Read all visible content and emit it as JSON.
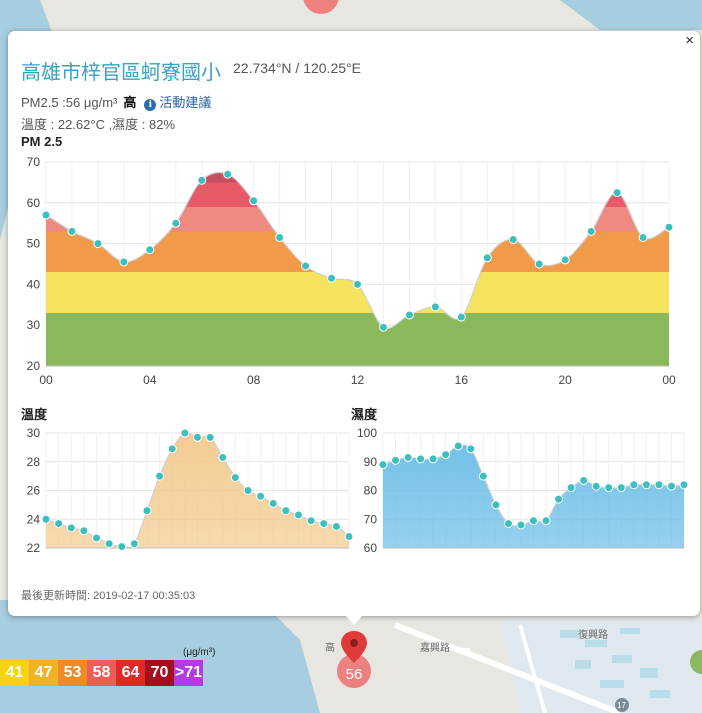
{
  "header": {
    "title": "高雄市梓官區蚵寮國小",
    "coords": "22.734°N / 120.25°E",
    "close": "×"
  },
  "pm_line": {
    "text": "PM2.5 :56 μg/m³",
    "level": "高",
    "info_icon": "i",
    "advice": "活動建議"
  },
  "env_line": "溫度 : 22.62°C ,濕度 : 82%",
  "pm_chart_label": "PM 2.5",
  "temp_chart_label": "溫度",
  "hum_chart_label": "濕度",
  "updated": "最後更新時間: 2019-02-17 00:35:03",
  "legend": {
    "unit": "(μg/m³)",
    "items": [
      {
        "label": "41",
        "color": "#f5d312"
      },
      {
        "label": "47",
        "color": "#f2b228"
      },
      {
        "label": "53",
        "color": "#ef8a24"
      },
      {
        "label": "58",
        "color": "#ee5c5c"
      },
      {
        "label": "64",
        "color": "#e02a2a"
      },
      {
        "label": "70",
        "color": "#a60e1e"
      },
      {
        "label": ">71",
        "color": "#b23ce0"
      }
    ]
  },
  "marker": {
    "value": "56"
  },
  "map_labels": {
    "street": "嘉興路",
    "poi": "高",
    "road2": "復興路",
    "route": "17"
  },
  "chart_data": [
    {
      "type": "area",
      "title": "PM 2.5",
      "x": [
        "00",
        "01",
        "02",
        "03",
        "04",
        "05",
        "06",
        "07",
        "08",
        "09",
        "10",
        "11",
        "12",
        "13",
        "14",
        "15",
        "16",
        "17",
        "18",
        "19",
        "20",
        "21",
        "22",
        "23",
        "00"
      ],
      "xticks": [
        "00",
        "04",
        "08",
        "12",
        "16",
        "20",
        "00"
      ],
      "values": [
        57,
        53,
        50,
        45.5,
        48.5,
        55,
        65.5,
        67,
        60.5,
        51.5,
        44.5,
        41.5,
        40,
        29.5,
        32.5,
        34.5,
        32,
        46.5,
        51,
        45,
        46,
        53,
        62.5,
        51.5,
        54
      ],
      "ylim": [
        20,
        70
      ],
      "yticks": [
        20,
        30,
        40,
        50,
        60,
        70
      ],
      "color_bands": [
        {
          "from": 20,
          "to": 33,
          "color": "#8ab85a"
        },
        {
          "from": 33,
          "to": 43,
          "color": "#f5e35e"
        },
        {
          "from": 43,
          "to": 53,
          "color": "#f09a4a"
        },
        {
          "from": 53,
          "to": 59,
          "color": "#ee8a80"
        },
        {
          "from": 59,
          "to": 65,
          "color": "#e85a66"
        },
        {
          "from": 65,
          "to": 70,
          "color": "#c74f60"
        }
      ]
    },
    {
      "type": "area",
      "title": "溫度",
      "values": [
        24,
        23.7,
        23.4,
        23.2,
        22.7,
        22.3,
        22.1,
        22.3,
        24.6,
        27,
        28.9,
        30,
        29.7,
        29.7,
        28.3,
        26.9,
        26,
        25.6,
        25.1,
        24.6,
        24.3,
        23.9,
        23.7,
        23.5,
        22.8
      ],
      "ylim": [
        22,
        30
      ],
      "yticks": [
        22,
        24,
        26,
        28,
        30
      ],
      "color": "#f3c98c"
    },
    {
      "type": "area",
      "title": "濕度",
      "values": [
        89,
        90.5,
        91.5,
        91,
        91,
        92.5,
        95.5,
        94.5,
        85,
        75,
        68.5,
        68,
        69.5,
        69.5,
        77,
        81,
        83.5,
        81.5,
        81,
        81,
        82,
        82,
        82,
        81.5,
        82
      ],
      "ylim": [
        60,
        100
      ],
      "yticks": [
        60,
        70,
        80,
        90,
        100
      ],
      "color": "#6bbde6"
    }
  ]
}
